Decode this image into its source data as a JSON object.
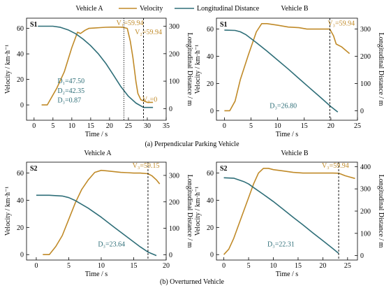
{
  "legend": {
    "velocity": "Velocity",
    "distance": "Longitudinal Distance",
    "velocity_color": "#c08a28",
    "distance_color": "#2e6e78"
  },
  "captions": {
    "row1": "(a) Perpendicular Parking Vehicle",
    "row2": "(b) Overturned Vehicle"
  },
  "chart_data": [
    {
      "type": "line",
      "title": "Vehicle A",
      "scenario": "S1",
      "xlabel": "Time / s",
      "ylabel": "Velocity / km·h⁻¹",
      "y2label": "Longitudinal Distance / m",
      "xlim": [
        -2,
        35
      ],
      "ylim": [
        -12,
        68
      ],
      "y2lim": [
        -42.35,
        329.4
      ],
      "xticks": [
        0,
        5,
        10,
        15,
        20,
        25,
        30,
        35
      ],
      "yticks": [
        0,
        20,
        40,
        60
      ],
      "y2ticks": [
        0,
        100,
        200,
        300
      ],
      "series": [
        {
          "name": "Velocity",
          "axis": "left",
          "x": [
            2,
            3.5,
            6,
            8,
            10,
            11.5,
            12.3,
            13.5,
            14.5,
            16,
            17.5,
            19,
            20.5,
            21.5,
            23,
            24,
            24.7,
            25.5,
            26.2,
            27,
            27.5,
            28.3,
            30,
            31.5
          ],
          "y": [
            0,
            0,
            13,
            26,
            45,
            57,
            56,
            58.5,
            60,
            60.3,
            60.6,
            60.9,
            61,
            61,
            61,
            60.5,
            60,
            50,
            37,
            18,
            9,
            4,
            2,
            2
          ]
        },
        {
          "name": "Longitudinal Distance",
          "axis": "right",
          "x": [
            1,
            5,
            7,
            9,
            11,
            13,
            15,
            17,
            19,
            21,
            23,
            25,
            27,
            29,
            31.5
          ],
          "y": [
            300,
            300,
            296,
            287,
            273,
            253,
            229,
            200,
            165,
            123,
            80,
            45,
            20,
            4.35,
            4.35
          ]
        }
      ],
      "annotations": [
        {
          "text": "V₁=59.94",
          "x": 21.8,
          "y": 62.5
        },
        {
          "text": "V₂=59.94",
          "x": 26.7,
          "y": 55.5
        },
        {
          "text": "V₃=0",
          "x": 28.7,
          "y": 2.5
        },
        {
          "text": "D₁=47.50",
          "x": 6.2,
          "y": 17
        },
        {
          "text": "D₂=42.35",
          "x": 6.2,
          "y": 9.5
        },
        {
          "text": "D₃=0.87",
          "x": 6.2,
          "y": 2
        }
      ],
      "markers": [
        {
          "type": "dotted-vline",
          "x": 23.8
        },
        {
          "type": "dashed-vline",
          "x": 29
        }
      ]
    },
    {
      "type": "line",
      "title": "Vehicle B",
      "scenario": "S1",
      "xlabel": "Time / s",
      "ylabel": "Velocity / km·h⁻¹",
      "y2label": "Longitudinal Distance / m",
      "xlim": [
        -1.5,
        25
      ],
      "ylim": [
        -7,
        68
      ],
      "y2lim": [
        -35,
        340
      ],
      "xticks": [
        0,
        5,
        10,
        15,
        20,
        25
      ],
      "yticks": [
        0,
        20,
        40,
        60
      ],
      "y2ticks": [
        0,
        100,
        200,
        300
      ],
      "series": [
        {
          "name": "Velocity",
          "axis": "left",
          "x": [
            0,
            1,
            2,
            3,
            4.5,
            6,
            7,
            8,
            10,
            12,
            14,
            15.5,
            17,
            18.5,
            19.8,
            20.5,
            21,
            22,
            23.5
          ],
          "y": [
            0,
            0,
            7,
            23,
            41,
            58,
            64,
            64,
            62.8,
            61.5,
            61,
            60,
            60,
            60,
            60,
            55,
            49,
            47,
            42
          ]
        },
        {
          "name": "Longitudinal Distance",
          "axis": "right",
          "x": [
            0,
            2,
            3,
            4,
            6,
            8,
            10,
            12,
            14,
            16,
            18,
            20,
            21.3
          ],
          "y": [
            296,
            295,
            290,
            280,
            250,
            219,
            186,
            153,
            118,
            84,
            50,
            15,
            -5
          ]
        }
      ],
      "annotations": [
        {
          "text": "V₃=59.94",
          "x": 19.4,
          "y": 62.5
        },
        {
          "text": "D₃=26.80",
          "x": 8.5,
          "y": 2
        }
      ],
      "markers": [
        {
          "type": "dashed-vline",
          "x": 19.8
        }
      ]
    },
    {
      "type": "line",
      "title": "Vehicle A",
      "scenario": "S2",
      "xlabel": "Time / s",
      "ylabel": "Velocity / km·h⁻¹",
      "y2label": "Longitudinal Distance / m",
      "xlim": [
        -1.5,
        20
      ],
      "ylim": [
        -4,
        68
      ],
      "y2lim": [
        -20,
        350
      ],
      "xticks": [
        0,
        5,
        10,
        15,
        20
      ],
      "yticks": [
        0,
        20,
        40,
        60
      ],
      "y2ticks": [
        0,
        100,
        200,
        300
      ],
      "series": [
        {
          "name": "Velocity",
          "axis": "left",
          "x": [
            1,
            2,
            3,
            4,
            5,
            6,
            7,
            8,
            9,
            10,
            11,
            12,
            13,
            14,
            15,
            16,
            17.2,
            17.8,
            18.5,
            19
          ],
          "y": [
            0,
            0,
            6,
            14,
            26,
            38,
            48,
            55,
            60.5,
            62,
            61.5,
            61,
            60.5,
            60.3,
            60,
            60,
            59.5,
            58,
            55,
            52
          ]
        },
        {
          "name": "Longitudinal Distance",
          "axis": "right",
          "x": [
            0,
            2,
            4,
            5,
            6,
            8,
            10,
            12,
            14,
            16,
            17.2,
            18.5
          ],
          "y": [
            225,
            225,
            222,
            216,
            205,
            176,
            142,
            104,
            67,
            30,
            10,
            -3
          ]
        }
      ],
      "annotations": [
        {
          "text": "V₃=59.15",
          "x": 14.8,
          "y": 64
        },
        {
          "text": "D₃=23.64",
          "x": 9.5,
          "y": 6
        }
      ],
      "markers": [
        {
          "type": "dashed-vline",
          "x": 17.2
        }
      ]
    },
    {
      "type": "line",
      "title": "Vehicle B",
      "scenario": "S2",
      "xlabel": "Time / s",
      "ylabel": "Velocity / km·h⁻¹",
      "y2label": "Longitudinal Distance / m",
      "xlim": [
        -1.5,
        27
      ],
      "ylim": [
        -4,
        68
      ],
      "y2lim": [
        -20,
        420
      ],
      "xticks": [
        0,
        5,
        10,
        15,
        20,
        25
      ],
      "yticks": [
        0,
        20,
        40,
        60
      ],
      "y2ticks": [
        0,
        100,
        200,
        300,
        400
      ],
      "series": [
        {
          "name": "Velocity",
          "axis": "left",
          "x": [
            0,
            1,
            2,
            3,
            4,
            5,
            6,
            7,
            8,
            9,
            10,
            12,
            14,
            16,
            18,
            20,
            22,
            23.2,
            24.5,
            25.5,
            26.5
          ],
          "y": [
            0,
            4,
            12,
            22,
            32,
            42,
            52,
            60,
            63.5,
            63.5,
            62.5,
            61.5,
            60.5,
            60,
            60,
            60,
            60,
            59.9,
            58,
            57,
            56
          ]
        },
        {
          "name": "Longitudinal Distance",
          "axis": "right",
          "x": [
            0,
            2,
            4,
            5,
            6,
            8,
            10,
            12,
            14,
            16,
            18,
            20,
            22,
            23.2
          ],
          "y": [
            350,
            348,
            333,
            322,
            306,
            275,
            243,
            208,
            172,
            138,
            102,
            67,
            32,
            10
          ]
        }
      ],
      "annotations": [
        {
          "text": "V₃=59.94",
          "x": 19.8,
          "y": 64
        },
        {
          "text": "D₃=22.31",
          "x": 8.8,
          "y": 6
        }
      ],
      "markers": [
        {
          "type": "dashed-vline",
          "x": 23.2
        }
      ]
    }
  ]
}
